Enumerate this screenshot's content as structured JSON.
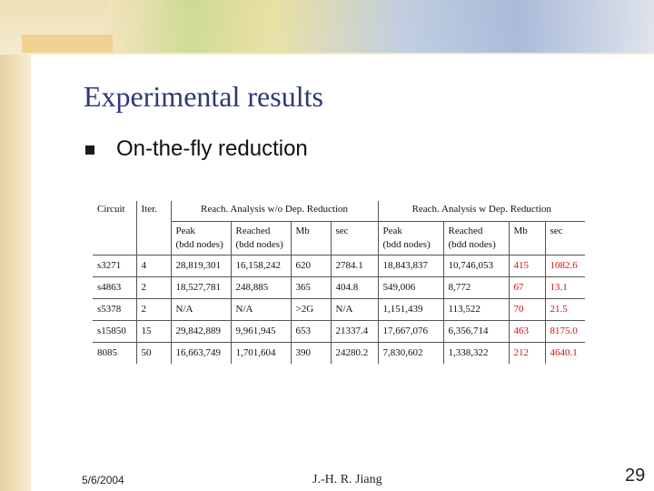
{
  "slide": {
    "title": "Experimental results",
    "bullet": "On-the-fly reduction"
  },
  "table": {
    "header_row1": {
      "circuit": "Circuit",
      "iter": "Iter.",
      "group_without": "Reach. Analysis w/o Dep. Reduction",
      "group_with": "Reach. Analysis w Dep. Reduction"
    },
    "sub_headers": [
      [
        "Peak",
        "(bdd nodes)"
      ],
      [
        "Reached",
        "(bdd nodes)"
      ],
      [
        "Mb",
        ""
      ],
      [
        "sec",
        ""
      ],
      [
        "Peak",
        "(bdd nodes)"
      ],
      [
        "Reached",
        "(bdd nodes)"
      ],
      [
        "Mb",
        ""
      ],
      [
        "sec",
        ""
      ]
    ],
    "rows": [
      [
        "s3271",
        "4",
        "28,819,301",
        "16,158,242",
        "620",
        "2784.1",
        "18,843,837",
        "10,746,053",
        "415",
        "1082.6"
      ],
      [
        "s4863",
        "2",
        "18,527,781",
        "248,885",
        "365",
        "404.8",
        "549,006",
        "8,772",
        "67",
        "13.1"
      ],
      [
        "s5378",
        "2",
        "N/A",
        "N/A",
        ">2G",
        "N/A",
        "1,151,439",
        "113,522",
        "70",
        "21.5"
      ],
      [
        "s15850",
        "15",
        "29,842,889",
        "9,961,945",
        "653",
        "21337.4",
        "17,667,076",
        "6,356,714",
        "463",
        "8175.0"
      ],
      [
        "8085",
        "50",
        "16,663,749",
        "1,701,604",
        "390",
        "24280.2",
        "7,830,602",
        "1,338,322",
        "212",
        "4640.1"
      ]
    ],
    "highlight_color": "#cc1111"
  },
  "footer": {
    "date": "5/6/2004",
    "author": "J.-H. R. Jiang",
    "page": "29"
  }
}
